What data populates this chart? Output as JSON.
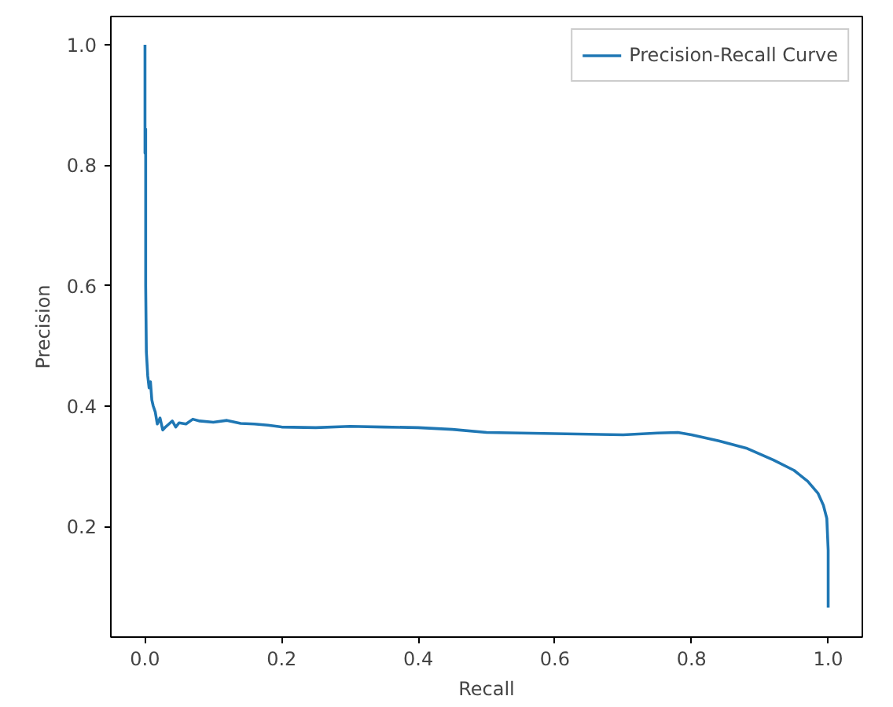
{
  "chart_data": {
    "type": "line",
    "xlabel": "Recall",
    "ylabel": "Precision",
    "xlim": [
      -0.05,
      1.05
    ],
    "ylim": [
      0.016,
      1.047
    ],
    "xticks": [
      {
        "value": 0,
        "label": "0.0"
      },
      0.2,
      0.4,
      0.6,
      0.8,
      {
        "value": 1,
        "label": "1.0"
      }
    ],
    "yticks": [
      0.2,
      0.4,
      0.6,
      0.8,
      {
        "value": 1,
        "label": "1.0"
      }
    ],
    "grid": false,
    "legend": "top right",
    "series": [
      {
        "name": "Precision-Recall Curve",
        "color": "#1f77b4",
        "x": [
          0.0,
          0.0,
          0.001,
          0.001,
          0.002,
          0.004,
          0.006,
          0.008,
          0.01,
          0.012,
          0.015,
          0.018,
          0.022,
          0.026,
          0.03,
          0.035,
          0.04,
          0.045,
          0.05,
          0.06,
          0.07,
          0.08,
          0.1,
          0.12,
          0.14,
          0.16,
          0.18,
          0.2,
          0.25,
          0.3,
          0.35,
          0.4,
          0.45,
          0.5,
          0.55,
          0.6,
          0.65,
          0.7,
          0.75,
          0.78,
          0.8,
          0.84,
          0.88,
          0.92,
          0.95,
          0.97,
          0.985,
          0.993,
          0.998,
          1.0,
          1.0
        ],
        "values": [
          1.0,
          0.82,
          0.86,
          0.6,
          0.49,
          0.45,
          0.43,
          0.44,
          0.41,
          0.4,
          0.39,
          0.37,
          0.38,
          0.36,
          0.365,
          0.37,
          0.375,
          0.365,
          0.372,
          0.37,
          0.378,
          0.375,
          0.373,
          0.376,
          0.371,
          0.37,
          0.368,
          0.365,
          0.364,
          0.366,
          0.365,
          0.364,
          0.361,
          0.356,
          0.355,
          0.354,
          0.353,
          0.352,
          0.355,
          0.356,
          0.352,
          0.342,
          0.33,
          0.31,
          0.293,
          0.275,
          0.255,
          0.235,
          0.213,
          0.16,
          0.065
        ]
      }
    ]
  }
}
